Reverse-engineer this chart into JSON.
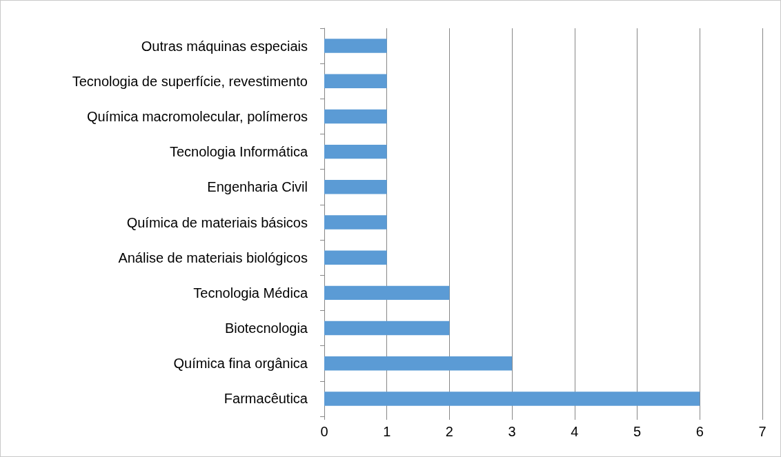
{
  "chart_data": {
    "type": "bar",
    "orientation": "horizontal",
    "categories": [
      "Outras máquinas especiais",
      "Tecnologia de superfície, revestimento",
      "Química macromolecular, polímeros",
      "Tecnologia Informática",
      "Engenharia Civil",
      "Química de materiais básicos",
      "Análise de materiais biológicos",
      "Tecnologia Médica",
      "Biotecnologia",
      "Química fina orgânica",
      "Farmacêutica"
    ],
    "values": [
      1,
      1,
      1,
      1,
      1,
      1,
      1,
      2,
      2,
      3,
      6
    ],
    "color": "#5b9bd5",
    "xlim": [
      0,
      7
    ],
    "xticks": [
      0,
      1,
      2,
      3,
      4,
      5,
      6,
      7
    ],
    "grid": "x"
  }
}
